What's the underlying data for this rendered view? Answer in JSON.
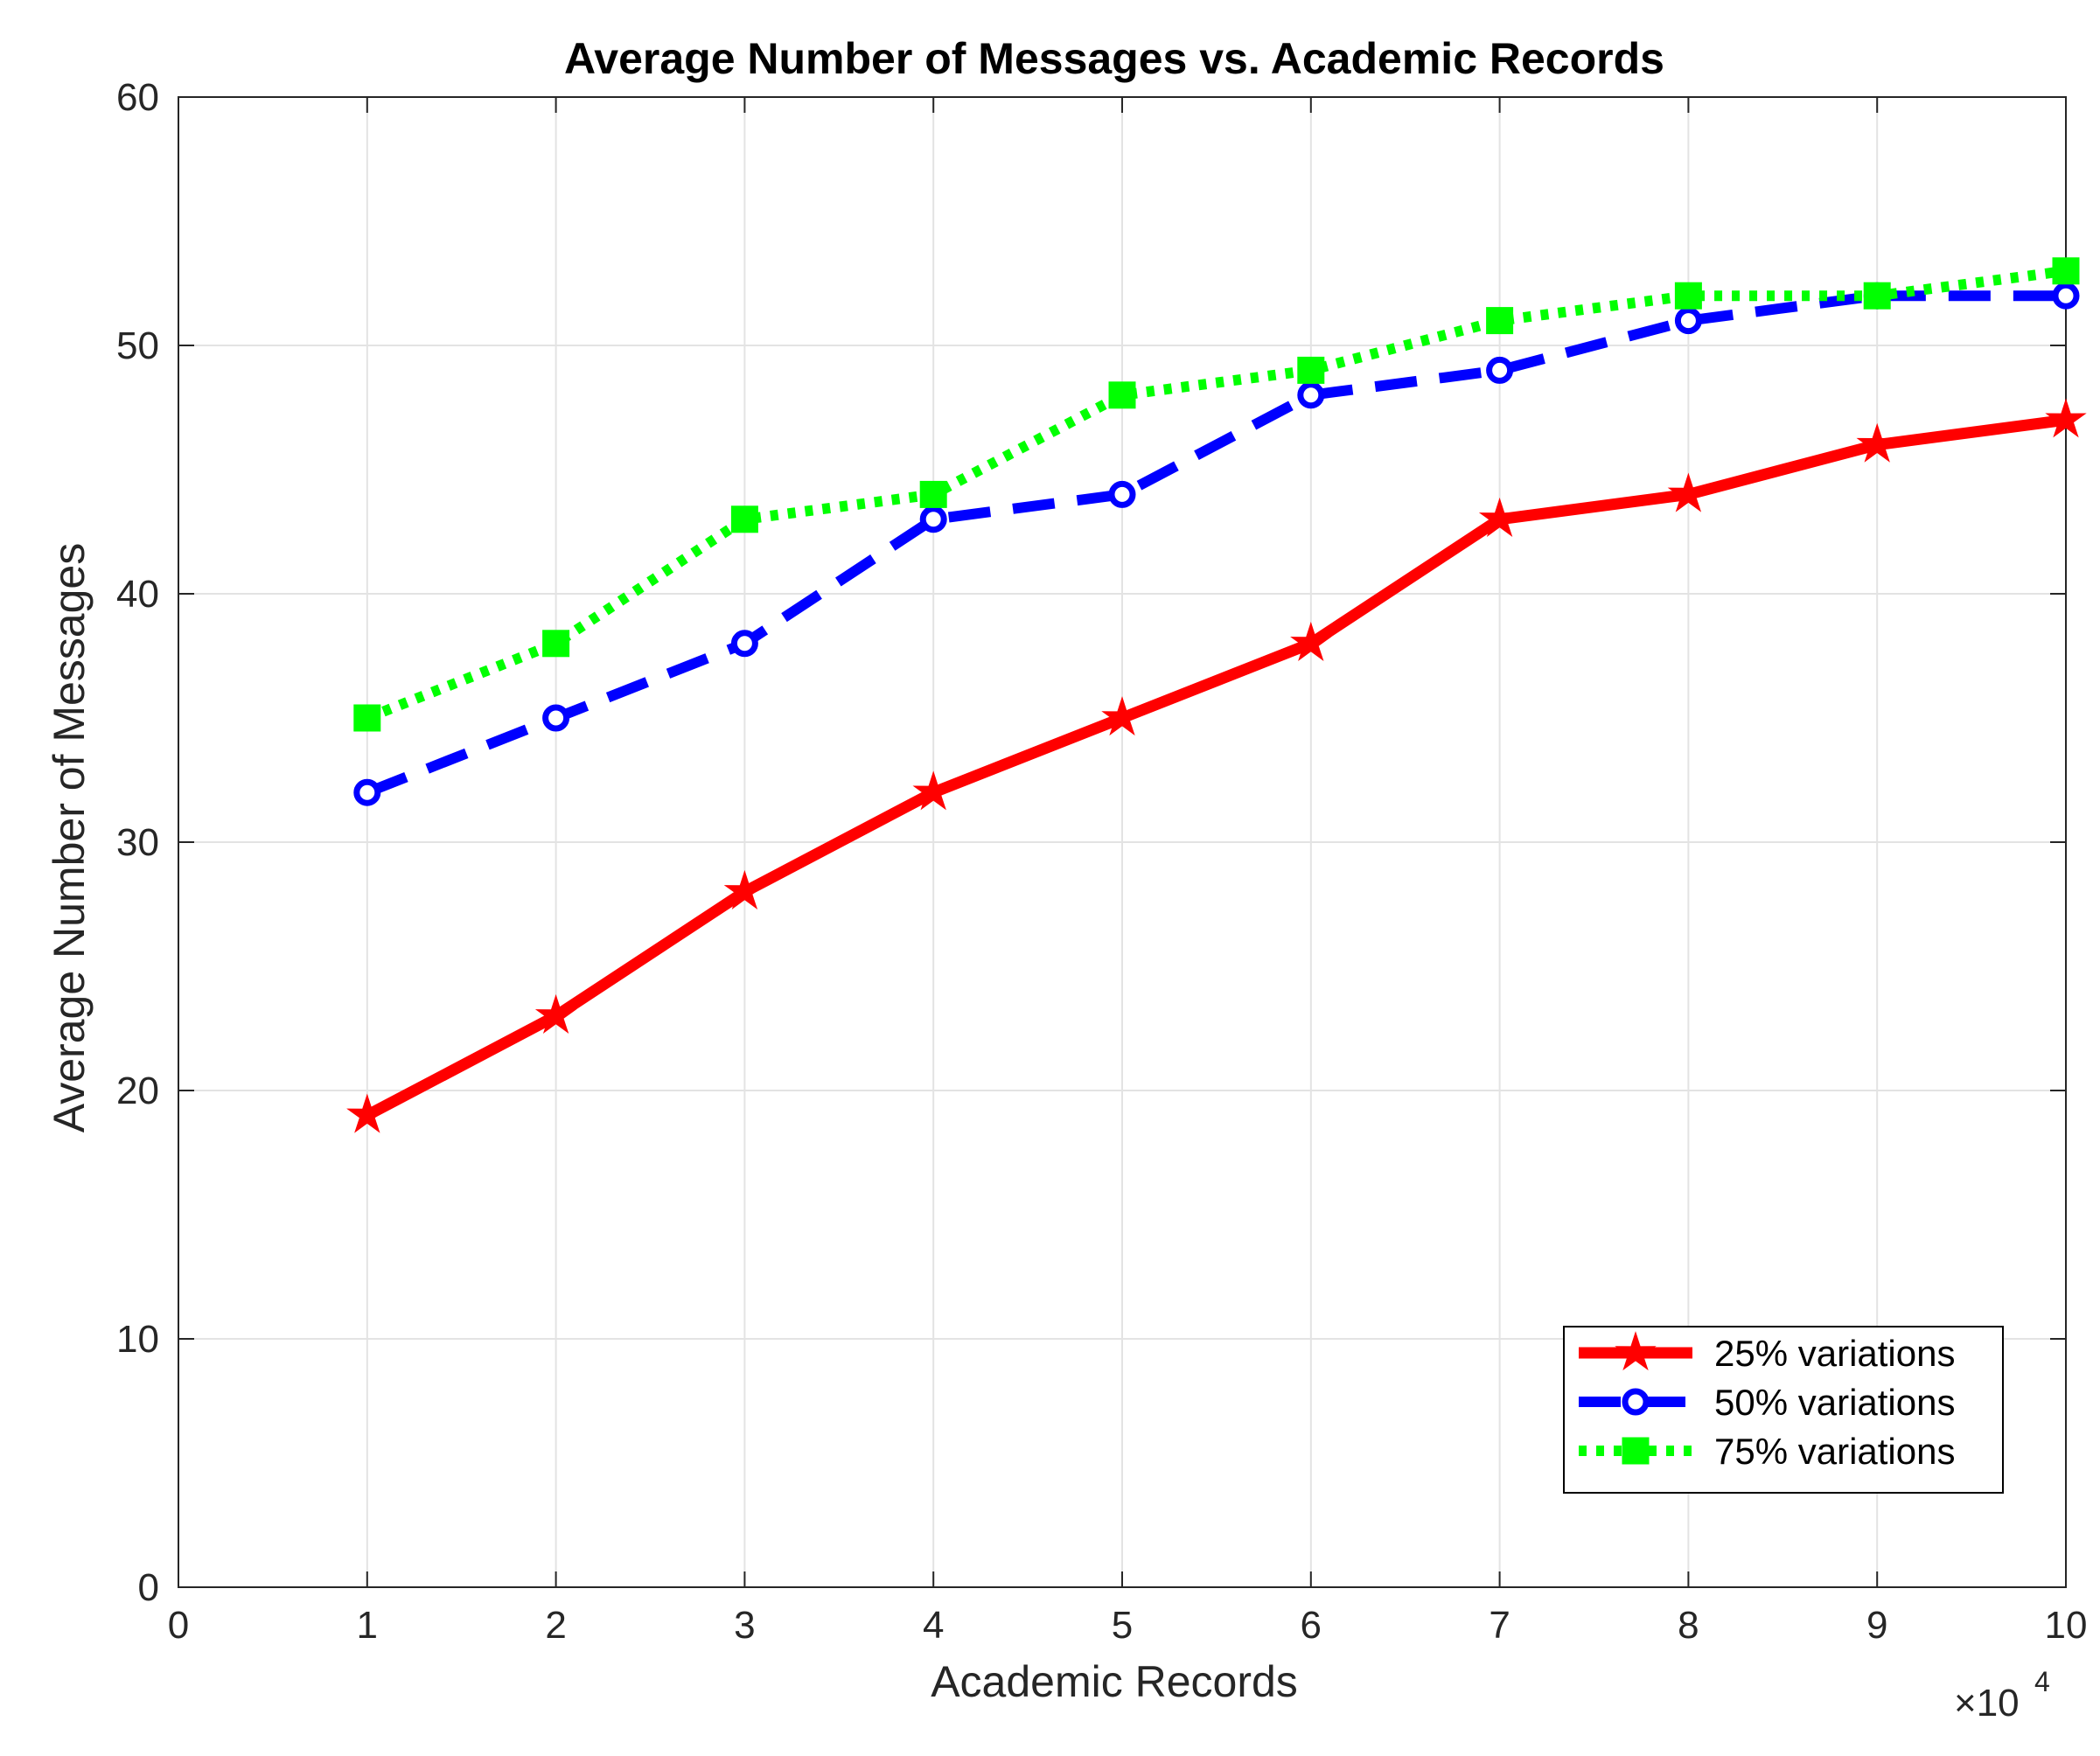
{
  "chart_data": {
    "type": "line",
    "title": "Average Number of Messages vs. Academic Records",
    "xlabel": "Academic Records",
    "ylabel": "Average Number of Messages",
    "x_multiplier_label": "×10",
    "x_multiplier_exponent": "4",
    "xlim": [
      0,
      10
    ],
    "ylim": [
      0,
      60
    ],
    "x_ticks": [
      0,
      1,
      2,
      3,
      4,
      5,
      6,
      7,
      8,
      9,
      10
    ],
    "y_ticks": [
      0,
      10,
      20,
      30,
      40,
      50,
      60
    ],
    "grid": true,
    "legend_position": "bottom-right",
    "x": [
      1,
      2,
      3,
      4,
      5,
      6,
      7,
      8,
      9,
      10
    ],
    "series": [
      {
        "name": "25% variations",
        "color": "#ff0000",
        "style": "solid",
        "marker": "star",
        "values": [
          19,
          23,
          28,
          32,
          35,
          38,
          43,
          44,
          46,
          47
        ]
      },
      {
        "name": "50% variations",
        "color": "#0000ff",
        "style": "dashed",
        "marker": "circle",
        "values": [
          32,
          35,
          38,
          43,
          44,
          48,
          49,
          51,
          52,
          52
        ]
      },
      {
        "name": "75% variations",
        "color": "#00ff00",
        "style": "dotted",
        "marker": "square",
        "values": [
          35,
          38,
          43,
          44,
          48,
          49,
          51,
          52,
          52,
          53
        ]
      }
    ]
  }
}
